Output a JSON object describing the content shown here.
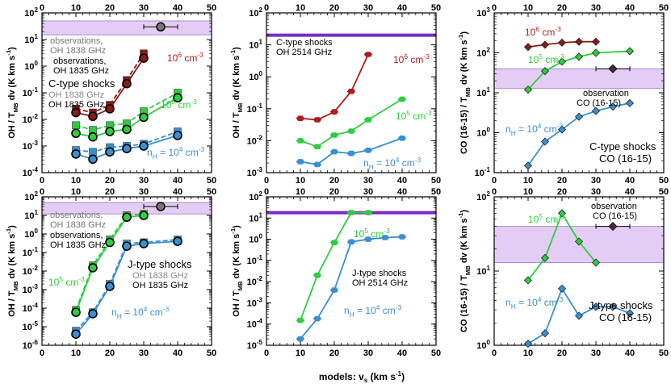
{
  "figure": {
    "xlabel": "models: v",
    "xlabel_sub": "s",
    "xlabel_unit": "(km s",
    "xlabel_unit_sup": "-1",
    "xlabel_close": ")"
  },
  "chart_data": [
    {
      "id": "p1",
      "type": "line",
      "xlim": [
        0,
        50
      ],
      "ylim_log": [
        -4,
        2
      ],
      "log": true,
      "ylabel": "OH / T_MB dv (K km s^-1)",
      "observation": {
        "x": 35,
        "xerr": 5,
        "y": 30,
        "band": [
          15,
          50
        ]
      },
      "series": [
        {
          "color": "#8b1a1a",
          "marker": "square",
          "dashed": true,
          "x": [
            10,
            15,
            20,
            25,
            30
          ],
          "y": [
            0.025,
            0.018,
            0.035,
            0.3,
            3
          ]
        },
        {
          "color": "#8b1a1a",
          "marker": "circle",
          "dashed": false,
          "x": [
            10,
            15,
            20,
            25,
            30
          ],
          "y": [
            0.018,
            0.013,
            0.025,
            0.22,
            2
          ]
        },
        {
          "color": "#2ecc40",
          "marker": "square",
          "dashed": true,
          "x": [
            10,
            15,
            20,
            25,
            30,
            40
          ],
          "y": [
            0.006,
            0.004,
            0.006,
            0.007,
            0.02,
            0.1
          ]
        },
        {
          "color": "#2ecc40",
          "marker": "circle",
          "dashed": false,
          "x": [
            10,
            15,
            20,
            25,
            30,
            40
          ],
          "y": [
            0.003,
            0.0022,
            0.0035,
            0.0042,
            0.012,
            0.065
          ]
        },
        {
          "color": "#3a8fd0",
          "marker": "square",
          "dashed": true,
          "x": [
            10,
            15,
            20,
            25,
            30,
            40
          ],
          "y": [
            0.0007,
            0.0006,
            0.0009,
            0.001,
            0.0012,
            0.0035
          ]
        },
        {
          "color": "#3a8fd0",
          "marker": "circle",
          "dashed": false,
          "x": [
            10,
            15,
            20,
            25,
            30,
            40
          ],
          "y": [
            0.0005,
            0.00032,
            0.0006,
            0.0008,
            0.001,
            0.0025
          ]
        }
      ]
    },
    {
      "id": "p2",
      "type": "line",
      "xlim": [
        0,
        50
      ],
      "ylim_log": [
        -3,
        2
      ],
      "log": true,
      "ylabel": "OH / T_MB dv (K km s^-1)",
      "observation": {
        "line": 20
      },
      "series": [
        {
          "color": "#b01c1c",
          "marker": "hexagon",
          "x": [
            10,
            15,
            20,
            25,
            30
          ],
          "y": [
            0.05,
            0.045,
            0.08,
            0.35,
            5
          ]
        },
        {
          "color": "#2ecc40",
          "marker": "hexagon",
          "x": [
            10,
            15,
            20,
            25,
            30,
            40
          ],
          "y": [
            0.01,
            0.0065,
            0.015,
            0.02,
            0.045,
            0.2
          ]
        },
        {
          "color": "#3a8fd0",
          "marker": "hexagon",
          "x": [
            10,
            15,
            20,
            25,
            30,
            40
          ],
          "y": [
            0.0022,
            0.0018,
            0.0045,
            0.004,
            0.005,
            0.012
          ]
        }
      ]
    },
    {
      "id": "p3",
      "type": "line",
      "xlim": [
        0,
        50
      ],
      "ylim_log": [
        -1,
        3
      ],
      "log": true,
      "ylabel": "CO (16-15) / T_MB dv (K km s^-1)",
      "observation": {
        "x": 35,
        "xerr": 5,
        "y": 40,
        "band": [
          13,
          40
        ]
      },
      "series": [
        {
          "color": "#8b1a1a",
          "marker": "diamond",
          "x": [
            10,
            15,
            20,
            25,
            30
          ],
          "y": [
            140,
            160,
            180,
            190,
            190
          ]
        },
        {
          "color": "#2ecc40",
          "marker": "diamond",
          "x": [
            10,
            15,
            20,
            25,
            30,
            40
          ],
          "y": [
            12,
            35,
            60,
            80,
            100,
            110
          ]
        },
        {
          "color": "#3a8fd0",
          "marker": "diamond",
          "x": [
            10,
            15,
            20,
            25,
            30,
            35,
            40
          ],
          "y": [
            0.15,
            0.6,
            1.2,
            2.5,
            3.5,
            4.5,
            5.5
          ]
        }
      ]
    },
    {
      "id": "p4",
      "type": "line",
      "xlim": [
        0,
        50
      ],
      "ylim_log": [
        -6,
        2
      ],
      "log": true,
      "ylabel": "OH / T_MB dv (K km s^-1)",
      "observation": {
        "x": 35,
        "xerr": 5,
        "y": 30,
        "band": [
          12,
          50
        ]
      },
      "series": [
        {
          "color": "#2ecc40",
          "marker": "square",
          "dashed": true,
          "x": [
            10,
            15,
            20,
            25,
            30
          ],
          "y": [
            8e-05,
            0.02,
            0.5,
            10,
            12
          ]
        },
        {
          "color": "#2ecc40",
          "marker": "circle",
          "dashed": false,
          "x": [
            10,
            15,
            20,
            25,
            30
          ],
          "y": [
            6e-05,
            0.015,
            0.35,
            8,
            10
          ]
        },
        {
          "color": "#3a8fd0",
          "marker": "square",
          "dashed": true,
          "x": [
            10,
            15,
            20,
            25,
            30,
            40
          ],
          "y": [
            6e-06,
            6e-05,
            0.002,
            0.3,
            0.35,
            0.5
          ]
        },
        {
          "color": "#3a8fd0",
          "marker": "circle",
          "dashed": false,
          "x": [
            10,
            15,
            20,
            25,
            30,
            40
          ],
          "y": [
            4e-06,
            5e-05,
            0.0015,
            0.22,
            0.3,
            0.4
          ]
        }
      ]
    },
    {
      "id": "p5",
      "type": "line",
      "xlim": [
        0,
        50
      ],
      "ylim_log": [
        -5,
        2
      ],
      "log": true,
      "ylabel": "OH / T_MB dv (K km s^-1)",
      "observation": {
        "line": 18
      },
      "series": [
        {
          "color": "#2ecc40",
          "marker": "hexagon",
          "x": [
            10,
            15,
            20,
            25,
            30
          ],
          "y": [
            0.00015,
            0.02,
            0.7,
            18,
            18
          ]
        },
        {
          "color": "#3a8fd0",
          "marker": "hexagon",
          "x": [
            10,
            15,
            20,
            25,
            30,
            35,
            40
          ],
          "y": [
            2e-05,
            0.00018,
            0.004,
            0.75,
            1,
            1.2,
            1.3
          ]
        }
      ]
    },
    {
      "id": "p6",
      "type": "line",
      "xlim": [
        0,
        50
      ],
      "ylim_log": [
        0,
        2
      ],
      "log": true,
      "ylabel": "CO (16-15) / T_MB dv (K km s^-1)",
      "observation": {
        "x": 35,
        "xerr": 5,
        "y": 40,
        "band": [
          13,
          40
        ]
      },
      "series": [
        {
          "color": "#2ecc40",
          "marker": "diamond",
          "x": [
            10,
            15,
            20,
            25,
            30
          ],
          "y": [
            7.5,
            15,
            60,
            25,
            13
          ]
        },
        {
          "color": "#3a8fd0",
          "marker": "diamond",
          "x": [
            10,
            15,
            20,
            25,
            30,
            35,
            40
          ],
          "y": [
            1.05,
            1.45,
            5.8,
            2.5,
            3.3,
            3.3,
            2.7
          ]
        }
      ]
    }
  ],
  "labels": {
    "p1": {
      "obs1": "observations,",
      "obs2": "OH 1838 GHz",
      "obs3": "observations,",
      "obs4": "OH 1835 GHz",
      "shock": "C-type shocks",
      "l1838": "OH 1838 GHz",
      "l1835": "OH 1835 GHz",
      "n6": "10",
      "n6sup": "6",
      "n6unit": " cm",
      "n6unitsup": "-3",
      "n5": "10",
      "n5sup": "5",
      "n5unit": " cm",
      "n5unitsup": "-3",
      "n4a": "n",
      "n4sub": "H",
      "n4b": " = 10",
      "n4sup": "4",
      "n4unit": " cm",
      "n4unitsup": "-3"
    },
    "p2": {
      "shock": "C-type shocks",
      "line": "OH 2514 GHz",
      "n6": "10",
      "n6sup": "6",
      "n6unit": " cm",
      "n6unitsup": "-3",
      "n5": "10",
      "n5sup": "5",
      "n5unit": " cm",
      "n5unitsup": "-3",
      "n4a": "n",
      "n4sub": "H",
      "n4b": " = 10",
      "n4sup": "4",
      "n4unit": " cm",
      "n4unitsup": "-3"
    },
    "p3": {
      "obs1": "observation",
      "obs2": "CO (16-15)",
      "shock": "C-type shocks",
      "line": "CO (16-15)",
      "n6": "10",
      "n6sup": "6",
      "n6unit": " cm",
      "n6unitsup": "-3",
      "n5": "10",
      "n5sup": "5",
      "n5unit": " cm",
      "n5unitsup": "-3",
      "n4a": "n",
      "n4sub": "H",
      "n4b": " = 10",
      "n4sup": "4",
      "n4unit": " cm",
      "n4unitsup": "-3"
    },
    "p4": {
      "obs1": "observations,",
      "obs2": "OH 1838 GHz",
      "obs3": "observations,",
      "obs4": "OH 1835 GHz",
      "shock": "J-type shocks",
      "l1838": "OH 1838 GHz",
      "l1835": "OH 1835 GHz",
      "n5": "10",
      "n5sup": "5",
      "n5unit": " cm",
      "n5unitsup": "-3",
      "n4a": "n",
      "n4sub": "H",
      "n4b": " = 10",
      "n4sup": "4",
      "n4unit": " cm",
      "n4unitsup": "-3"
    },
    "p5": {
      "shock": "J-type shocks",
      "line": "OH 2514 GHz",
      "n5": "10",
      "n5sup": "5",
      "n5unit": " cm",
      "n5unitsup": "-3",
      "n4a": "n",
      "n4sub": "H",
      "n4b": " = 10",
      "n4sup": "4",
      "n4unit": " cm",
      "n4unitsup": "-3"
    },
    "p6": {
      "obs1": "observation",
      "obs2": "CO (16-15)",
      "shock": "J-type shocks",
      "line": "CO (16-15)",
      "n5": "10",
      "n5sup": "5",
      "n5unit": " cm",
      "n5unitsup": "-3",
      "n4a": "n",
      "n4sub": "H",
      "n4b": " = 10",
      "n4sup": "4",
      "n4unit": " cm",
      "n4unitsup": "-3"
    }
  },
  "ylabels": {
    "oh_a": "OH / T",
    "oh_sub": "MB",
    "oh_b": " dv (K km s",
    "oh_sup": "-1",
    "oh_c": ")",
    "co_a": "CO (16-15) / T",
    "co_sub": "MB",
    "co_b": " dv (K km s",
    "co_sup": "-1",
    "co_c": ")"
  },
  "colors": {
    "band": "#d9b8ef",
    "band_edge": "#a070d0",
    "line_obs": "#7b2cbf",
    "obs_marker": "#777777"
  }
}
